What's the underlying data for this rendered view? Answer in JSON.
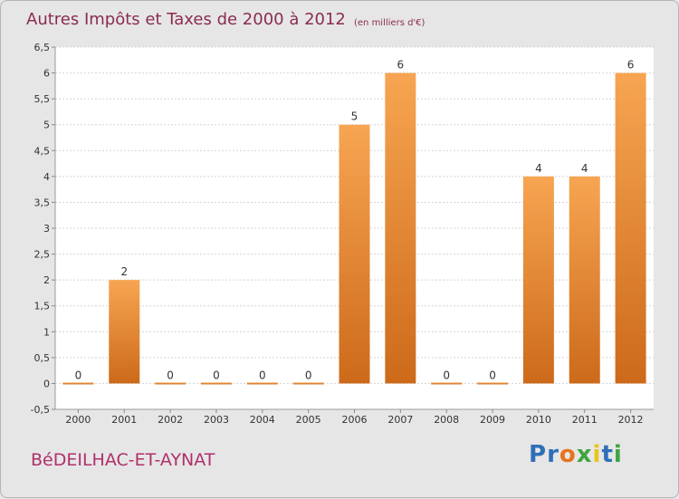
{
  "chart_data": {
    "type": "bar",
    "title": "Autres Impôts et Taxes de 2000 à 2012",
    "subtitle": "(en milliers d'€)",
    "categories": [
      "2000",
      "2001",
      "2002",
      "2003",
      "2004",
      "2005",
      "2006",
      "2007",
      "2008",
      "2009",
      "2010",
      "2011",
      "2012"
    ],
    "values": [
      0,
      2,
      0,
      0,
      0,
      0,
      5,
      6,
      0,
      0,
      4,
      4,
      6
    ],
    "ylim": [
      -0.5,
      6.5
    ],
    "yticks": [
      "-0,5",
      "0",
      "0,5",
      "1",
      "1,5",
      "2",
      "2,5",
      "3",
      "3,5",
      "4",
      "4,5",
      "5",
      "5,5",
      "6",
      "6,5"
    ],
    "grid": true,
    "bar_color_top": "#f7a552",
    "bar_color_bottom": "#cc6a1a"
  },
  "commune": "BéDEILHAC-ET-AYNAT",
  "brand": {
    "name": "Proxiti",
    "letters": [
      "P",
      "r",
      "o",
      "x",
      "i",
      "t",
      "i"
    ],
    "colors": [
      "#2f6fb8",
      "#2f6fb8",
      "#e8731c",
      "#3fa53f",
      "#e8c41c",
      "#2f6fb8",
      "#3fa53f"
    ]
  }
}
